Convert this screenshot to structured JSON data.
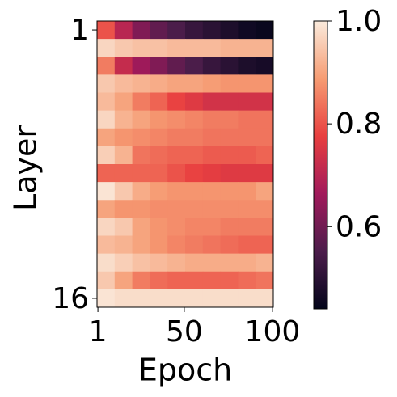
{
  "chart_data": {
    "type": "heatmap",
    "x_label": "Epoch",
    "y_label": "Layer",
    "x": [
      1,
      11,
      21,
      31,
      41,
      51,
      61,
      71,
      81,
      91
    ],
    "y": [
      1,
      2,
      3,
      4,
      5,
      6,
      7,
      8,
      9,
      10,
      11,
      12,
      13,
      14,
      15,
      16
    ],
    "values": [
      [
        0.8,
        0.7,
        0.62,
        0.58,
        0.55,
        0.52,
        0.5,
        0.48,
        0.46,
        0.45
      ],
      [
        0.97,
        0.95,
        0.94,
        0.94,
        0.93,
        0.93,
        0.93,
        0.92,
        0.92,
        0.92
      ],
      [
        0.85,
        0.72,
        0.66,
        0.62,
        0.58,
        0.55,
        0.52,
        0.5,
        0.48,
        0.47
      ],
      [
        0.95,
        0.93,
        0.92,
        0.91,
        0.9,
        0.9,
        0.89,
        0.88,
        0.88,
        0.88
      ],
      [
        0.93,
        0.9,
        0.85,
        0.82,
        0.78,
        0.76,
        0.74,
        0.74,
        0.74,
        0.74
      ],
      [
        0.97,
        0.92,
        0.9,
        0.88,
        0.87,
        0.86,
        0.85,
        0.85,
        0.84,
        0.84
      ],
      [
        0.9,
        0.88,
        0.87,
        0.86,
        0.85,
        0.85,
        0.84,
        0.84,
        0.84,
        0.84
      ],
      [
        0.96,
        0.92,
        0.84,
        0.83,
        0.82,
        0.82,
        0.81,
        0.81,
        0.81,
        0.82
      ],
      [
        0.82,
        0.82,
        0.82,
        0.82,
        0.8,
        0.78,
        0.77,
        0.76,
        0.76,
        0.76
      ],
      [
        0.99,
        0.95,
        0.91,
        0.89,
        0.88,
        0.88,
        0.88,
        0.88,
        0.88,
        0.9
      ],
      [
        0.9,
        0.88,
        0.88,
        0.87,
        0.87,
        0.87,
        0.87,
        0.87,
        0.87,
        0.87
      ],
      [
        0.97,
        0.95,
        0.9,
        0.88,
        0.87,
        0.86,
        0.86,
        0.85,
        0.85,
        0.85
      ],
      [
        0.93,
        0.92,
        0.9,
        0.88,
        0.86,
        0.85,
        0.84,
        0.83,
        0.82,
        0.82
      ],
      [
        0.98,
        0.96,
        0.94,
        0.93,
        0.92,
        0.91,
        0.91,
        0.91,
        0.91,
        0.92
      ],
      [
        0.95,
        0.9,
        0.85,
        0.83,
        0.82,
        0.82,
        0.82,
        0.82,
        0.83,
        0.84
      ],
      [
        0.99,
        0.98,
        0.98,
        0.98,
        0.98,
        0.98,
        0.98,
        0.98,
        0.98,
        0.98
      ]
    ],
    "xlim": [
      0.5,
      100.5
    ],
    "xticks": [
      1,
      50,
      100
    ],
    "ylim": [
      0.5,
      16.5
    ],
    "y_inverted": true,
    "yticks": [
      1,
      16
    ],
    "clim": [
      0.44,
      1.0
    ],
    "cticks": [
      0.6,
      0.8,
      {
        "value": 1.0,
        "label": "1.0"
      }
    ],
    "colormap": [
      "#03051a",
      "#4c1d4b",
      "#a11a5b",
      "#e83f3f",
      "#f69c73",
      "#faebdd"
    ]
  }
}
